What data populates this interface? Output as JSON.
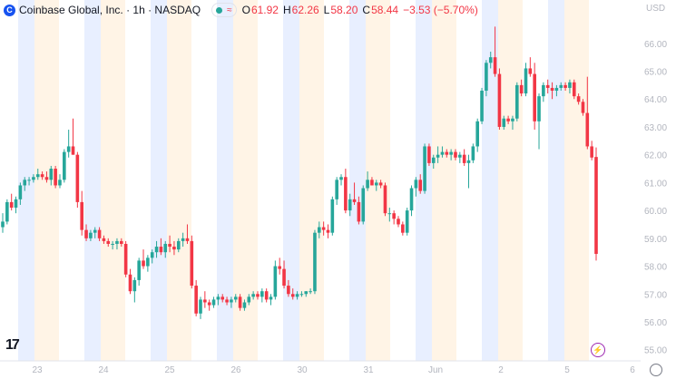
{
  "header": {
    "logo_letter": "C",
    "title": "Coinbase Global, Inc. · 1h · NASDAQ",
    "wave_icon": "≈",
    "o_label": "O",
    "o_value": "61.92",
    "h_label": "H",
    "h_value": "62.26",
    "l_label": "L",
    "l_value": "58.20",
    "c_label": "C",
    "c_value": "58.44",
    "change": "−3.53 (−5.70%)"
  },
  "footer": {
    "tv_logo": "17",
    "bolt_icon": "⚡"
  },
  "chart_data": {
    "type": "candlestick",
    "currency": "USD",
    "y_ticks": [
      "66.00",
      "65.00",
      "64.00",
      "63.00",
      "62.00",
      "61.00",
      "60.00",
      "59.00",
      "58.00",
      "57.00",
      "56.00",
      "55.00"
    ],
    "ylim": [
      54.6,
      67.1
    ],
    "x_ticks": [
      "23",
      "24",
      "25",
      "26",
      "30",
      "31",
      "Jun",
      "2",
      "5",
      "6"
    ],
    "colors": {
      "up": "#26a69a",
      "down": "#f23645",
      "premarket": "#e8efff",
      "afterhours": "#fff4e6",
      "axis_text": "#787b86"
    },
    "session_bands": [
      {
        "type": "pre",
        "x0": 20,
        "x1": 38
      },
      {
        "type": "post",
        "x0": 38,
        "x1": 65
      },
      {
        "type": "pre",
        "x0": 93,
        "x1": 111
      },
      {
        "type": "post",
        "x0": 111,
        "x1": 138
      },
      {
        "type": "pre",
        "x0": 166,
        "x1": 184
      },
      {
        "type": "post",
        "x0": 184,
        "x1": 211
      },
      {
        "type": "pre",
        "x0": 239,
        "x1": 257
      },
      {
        "type": "post",
        "x0": 257,
        "x1": 284
      },
      {
        "type": "pre",
        "x0": 312,
        "x1": 330
      },
      {
        "type": "post",
        "x0": 330,
        "x1": 357
      },
      {
        "type": "pre",
        "x0": 385,
        "x1": 403
      },
      {
        "type": "post",
        "x0": 403,
        "x1": 430
      },
      {
        "type": "pre",
        "x0": 458,
        "x1": 476
      },
      {
        "type": "post",
        "x0": 476,
        "x1": 503
      },
      {
        "type": "pre",
        "x0": 531,
        "x1": 549
      },
      {
        "type": "post",
        "x0": 549,
        "x1": 576
      },
      {
        "type": "pre",
        "x0": 604,
        "x1": 622
      },
      {
        "type": "post",
        "x0": 622,
        "x1": 649
      }
    ],
    "candles": [
      [
        59.4,
        59.9,
        59.2,
        59.6
      ],
      [
        59.6,
        60.4,
        59.5,
        60.3
      ],
      [
        60.3,
        60.6,
        60.0,
        60.1
      ],
      [
        60.1,
        60.5,
        59.9,
        60.4
      ],
      [
        60.4,
        61.0,
        60.2,
        60.9
      ],
      [
        60.9,
        61.2,
        60.7,
        61.1
      ],
      [
        61.1,
        61.2,
        60.9,
        61.1
      ],
      [
        61.1,
        61.3,
        61.0,
        61.2
      ],
      [
        61.2,
        61.5,
        61.1,
        61.3
      ],
      [
        61.3,
        61.4,
        61.1,
        61.2
      ],
      [
        61.2,
        61.4,
        61.0,
        61.1
      ],
      [
        61.1,
        61.6,
        60.9,
        61.5
      ],
      [
        61.5,
        61.6,
        60.8,
        60.9
      ],
      [
        60.9,
        61.3,
        60.8,
        61.1
      ],
      [
        61.1,
        62.2,
        61.0,
        62.1
      ],
      [
        62.1,
        62.9,
        61.9,
        62.3
      ],
      [
        62.3,
        63.3,
        62.0,
        62.0
      ],
      [
        62.0,
        62.1,
        60.1,
        60.3
      ],
      [
        60.3,
        60.7,
        59.1,
        59.3
      ],
      [
        59.3,
        59.5,
        58.9,
        59.0
      ],
      [
        59.0,
        59.3,
        58.9,
        59.2
      ],
      [
        59.2,
        59.4,
        59.0,
        59.3
      ],
      [
        59.3,
        59.4,
        58.9,
        59.0
      ],
      [
        59.0,
        59.1,
        58.8,
        58.9
      ],
      [
        58.9,
        59.0,
        58.7,
        58.8
      ],
      [
        58.8,
        58.9,
        58.6,
        58.8
      ],
      [
        58.8,
        59.0,
        58.6,
        58.9
      ],
      [
        58.9,
        59.0,
        58.7,
        58.8
      ],
      [
        58.8,
        58.9,
        57.6,
        57.7
      ],
      [
        57.7,
        57.9,
        57.0,
        57.1
      ],
      [
        57.1,
        57.6,
        56.7,
        57.5
      ],
      [
        57.5,
        58.3,
        57.3,
        58.2
      ],
      [
        58.2,
        58.6,
        57.9,
        58.0
      ],
      [
        58.0,
        58.4,
        57.8,
        58.3
      ],
      [
        58.3,
        58.6,
        58.1,
        58.5
      ],
      [
        58.5,
        58.9,
        58.3,
        58.7
      ],
      [
        58.7,
        59.0,
        58.4,
        58.5
      ],
      [
        58.5,
        58.9,
        58.3,
        58.8
      ],
      [
        58.8,
        59.1,
        58.5,
        58.7
      ],
      [
        58.7,
        58.9,
        58.4,
        58.6
      ],
      [
        58.6,
        59.0,
        58.5,
        58.9
      ],
      [
        58.9,
        59.2,
        58.7,
        59.0
      ],
      [
        59.0,
        59.5,
        58.8,
        58.9
      ],
      [
        58.9,
        59.1,
        57.2,
        57.3
      ],
      [
        57.3,
        57.5,
        56.2,
        56.3
      ],
      [
        56.3,
        56.9,
        56.1,
        56.8
      ],
      [
        56.8,
        57.1,
        56.5,
        56.7
      ],
      [
        56.7,
        56.8,
        56.4,
        56.6
      ],
      [
        56.6,
        56.9,
        56.5,
        56.8
      ],
      [
        56.8,
        57.0,
        56.6,
        56.9
      ],
      [
        56.9,
        57.0,
        56.7,
        56.8
      ],
      [
        56.8,
        56.9,
        56.6,
        56.7
      ],
      [
        56.7,
        56.9,
        56.5,
        56.8
      ],
      [
        56.8,
        57.0,
        56.7,
        56.9
      ],
      [
        56.9,
        57.0,
        56.4,
        56.5
      ],
      [
        56.5,
        56.8,
        56.4,
        56.7
      ],
      [
        56.7,
        57.0,
        56.6,
        56.9
      ],
      [
        56.9,
        57.1,
        56.8,
        57.0
      ],
      [
        57.0,
        57.1,
        56.8,
        56.9
      ],
      [
        56.9,
        57.2,
        56.7,
        57.1
      ],
      [
        57.1,
        57.2,
        56.7,
        56.8
      ],
      [
        56.8,
        57.0,
        56.6,
        56.9
      ],
      [
        56.9,
        58.2,
        56.8,
        58.0
      ],
      [
        58.0,
        58.3,
        57.7,
        57.9
      ],
      [
        57.9,
        58.2,
        57.2,
        57.3
      ],
      [
        57.3,
        57.5,
        56.9,
        57.0
      ],
      [
        57.0,
        57.2,
        56.8,
        56.9
      ],
      [
        56.9,
        57.1,
        56.8,
        57.0
      ],
      [
        57.0,
        57.1,
        56.9,
        57.0
      ],
      [
        57.0,
        57.1,
        56.9,
        57.1
      ],
      [
        57.1,
        57.2,
        57.0,
        57.1
      ],
      [
        57.1,
        59.3,
        57.0,
        59.2
      ],
      [
        59.2,
        59.6,
        59.0,
        59.4
      ],
      [
        59.4,
        59.6,
        59.1,
        59.3
      ],
      [
        59.3,
        59.5,
        59.0,
        59.2
      ],
      [
        59.2,
        60.5,
        59.1,
        60.4
      ],
      [
        60.4,
        61.2,
        60.2,
        61.1
      ],
      [
        61.1,
        61.3,
        60.9,
        61.2
      ],
      [
        61.2,
        61.5,
        59.9,
        60.0
      ],
      [
        60.0,
        60.6,
        59.8,
        60.4
      ],
      [
        60.4,
        61.0,
        60.2,
        60.3
      ],
      [
        60.3,
        60.5,
        59.5,
        59.6
      ],
      [
        59.6,
        60.9,
        59.5,
        60.8
      ],
      [
        60.8,
        61.4,
        60.7,
        61.1
      ],
      [
        61.1,
        61.2,
        60.9,
        60.9
      ],
      [
        60.9,
        61.1,
        60.7,
        61.0
      ],
      [
        61.0,
        61.1,
        60.8,
        60.9
      ],
      [
        60.9,
        61.0,
        59.8,
        59.9
      ],
      [
        59.9,
        60.1,
        59.6,
        59.9
      ],
      [
        59.9,
        60.0,
        59.5,
        59.7
      ],
      [
        59.7,
        59.8,
        59.4,
        59.5
      ],
      [
        59.5,
        59.6,
        59.1,
        59.2
      ],
      [
        59.2,
        60.1,
        59.1,
        60.0
      ],
      [
        60.0,
        60.9,
        59.8,
        60.8
      ],
      [
        60.8,
        61.2,
        60.5,
        61.1
      ],
      [
        61.1,
        61.3,
        60.6,
        60.7
      ],
      [
        60.7,
        62.4,
        60.6,
        62.3
      ],
      [
        62.3,
        62.4,
        61.6,
        61.7
      ],
      [
        61.7,
        62.0,
        61.5,
        61.9
      ],
      [
        61.9,
        62.3,
        61.7,
        62.0
      ],
      [
        62.0,
        62.3,
        61.9,
        62.1
      ],
      [
        62.1,
        62.2,
        61.9,
        62.0
      ],
      [
        62.0,
        62.2,
        61.8,
        62.1
      ],
      [
        62.1,
        62.2,
        61.8,
        61.9
      ],
      [
        61.9,
        62.1,
        61.7,
        62.0
      ],
      [
        62.0,
        62.2,
        61.6,
        61.7
      ],
      [
        61.7,
        62.0,
        60.8,
        61.8
      ],
      [
        61.8,
        62.4,
        61.7,
        62.3
      ],
      [
        62.3,
        63.3,
        62.1,
        63.2
      ],
      [
        63.2,
        64.4,
        63.1,
        64.3
      ],
      [
        64.3,
        65.4,
        64.1,
        65.3
      ],
      [
        65.3,
        65.7,
        65.1,
        65.5
      ],
      [
        65.5,
        66.6,
        64.8,
        64.9
      ],
      [
        64.9,
        65.1,
        62.9,
        63.0
      ],
      [
        63.0,
        63.4,
        62.9,
        63.3
      ],
      [
        63.3,
        63.4,
        63.1,
        63.2
      ],
      [
        63.2,
        63.4,
        62.9,
        63.3
      ],
      [
        63.3,
        64.6,
        63.2,
        64.5
      ],
      [
        64.5,
        64.7,
        64.1,
        64.2
      ],
      [
        64.2,
        65.3,
        64.1,
        65.1
      ],
      [
        65.1,
        65.5,
        64.8,
        64.9
      ],
      [
        64.9,
        65.3,
        62.9,
        63.2
      ],
      [
        63.2,
        64.2,
        62.2,
        64.1
      ],
      [
        64.1,
        64.6,
        63.9,
        64.5
      ],
      [
        64.5,
        64.7,
        64.2,
        64.4
      ],
      [
        64.4,
        64.6,
        64.0,
        64.3
      ],
      [
        64.3,
        64.5,
        64.1,
        64.4
      ],
      [
        64.4,
        64.6,
        64.3,
        64.5
      ],
      [
        64.5,
        64.6,
        64.3,
        64.4
      ],
      [
        64.4,
        64.7,
        64.2,
        64.6
      ],
      [
        64.6,
        64.7,
        64.0,
        64.1
      ],
      [
        64.1,
        64.2,
        63.8,
        63.9
      ],
      [
        63.9,
        64.0,
        63.4,
        63.5
      ],
      [
        63.5,
        64.8,
        62.2,
        62.3
      ],
      [
        62.3,
        62.5,
        61.8,
        61.9
      ],
      [
        61.92,
        62.26,
        58.2,
        58.44
      ]
    ]
  }
}
